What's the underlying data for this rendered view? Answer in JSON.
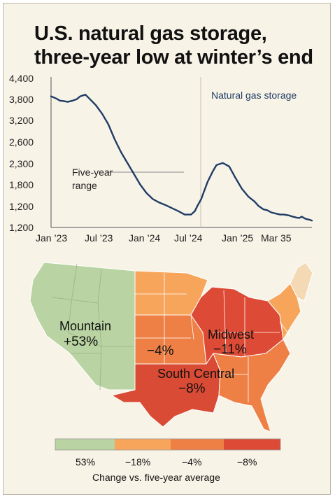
{
  "title_line1": "U.S. natural gas storage,",
  "title_line2": "three-year low at winter’s end",
  "chart_data": {
    "type": "line",
    "yticks": [
      "4,400",
      "3,800",
      "3,200",
      "2,600",
      "2,300",
      "1,800",
      "1,200",
      "1,200"
    ],
    "xticks": [
      "Jan ’23",
      "Jul ’23",
      "Jan ’24",
      "Jul ’24",
      "Jan ’25",
      "Mar 35"
    ],
    "series_label": "Natural gas storage",
    "range_label_line1": "Five-year",
    "range_label_line2": "range",
    "series_color": "#1f3d66",
    "series": [
      {
        "name": "Natural gas storage",
        "x": [
          0,
          0.04,
          0.07,
          0.1,
          0.13,
          0.17,
          0.2,
          0.23,
          0.27,
          0.3,
          0.35,
          0.4,
          0.45,
          0.5,
          0.55,
          0.6,
          0.65,
          0.7,
          0.75,
          0.8,
          0.85,
          0.9,
          0.95,
          1.0,
          1.05,
          1.1,
          1.13,
          1.15,
          1.18,
          1.2,
          1.23,
          1.27,
          1.3,
          1.35,
          1.4,
          1.45,
          1.5,
          1.55,
          1.6,
          1.63,
          1.67,
          1.7,
          1.73,
          1.77,
          1.8,
          1.83,
          1.87,
          1.9,
          1.93,
          1.95,
          1.97,
          2.0,
          2.03,
          2.05
        ],
        "y": [
          3950,
          3900,
          3850,
          3840,
          3820,
          3850,
          3880,
          3950,
          3990,
          3900,
          3750,
          3550,
          3300,
          2950,
          2650,
          2400,
          2150,
          1900,
          1700,
          1560,
          1480,
          1420,
          1350,
          1280,
          1200,
          1200,
          1280,
          1400,
          1560,
          1720,
          1960,
          2200,
          2350,
          2400,
          2320,
          2050,
          1800,
          1620,
          1500,
          1400,
          1320,
          1300,
          1250,
          1220,
          1200,
          1200,
          1180,
          1150,
          1130,
          1120,
          1150,
          1100,
          1080,
          1060
        ]
      }
    ],
    "map_labels": [
      {
        "region": "Mountain",
        "value": "+53%"
      },
      {
        "region": "",
        "value": "−4%"
      },
      {
        "region": "Midwest",
        "value": "−11%"
      },
      {
        "region": "South Central",
        "value": "−8%"
      }
    ],
    "legend": {
      "labels": [
        "53%",
        "−18%",
        "−4%",
        "−8%"
      ],
      "colors": [
        "#b9d3a2",
        "#f7a55a",
        "#ee8046",
        "#dd4a35"
      ],
      "caption": "Change vs. five-year average"
    }
  }
}
